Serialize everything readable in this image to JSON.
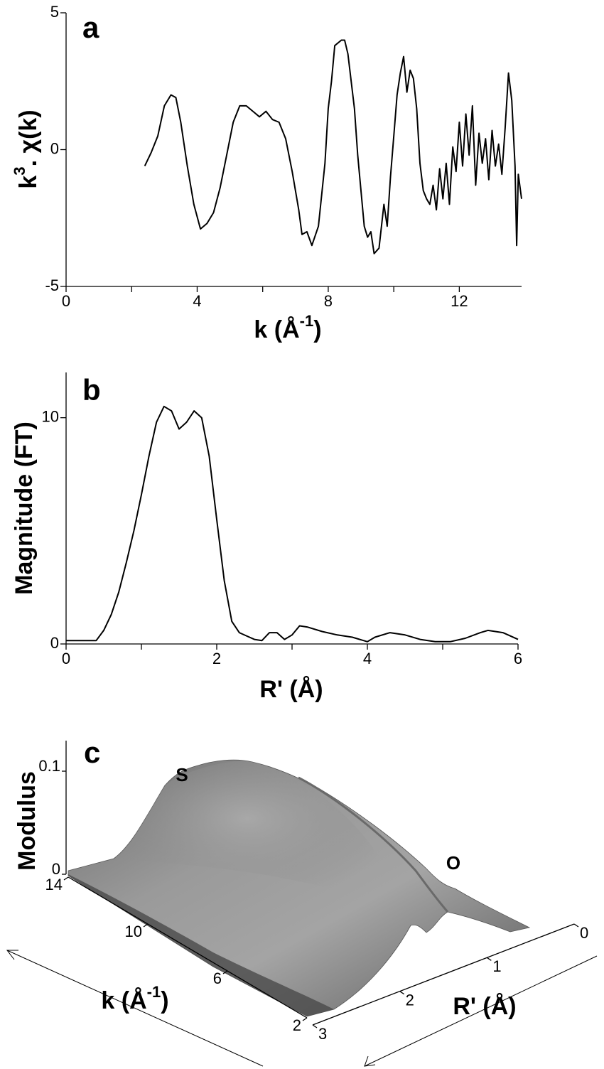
{
  "chart_data": [
    {
      "type": "line",
      "label": "a",
      "xlabel": [
        "k (Å",
        "-1",
        ")"
      ],
      "ylabel": [
        "k",
        "3",
        ". χ(k)"
      ],
      "x": [
        2.4,
        2.6,
        2.8,
        3.0,
        3.2,
        3.35,
        3.5,
        3.7,
        3.9,
        4.1,
        4.3,
        4.5,
        4.7,
        4.9,
        5.1,
        5.3,
        5.5,
        5.7,
        5.9,
        6.1,
        6.3,
        6.5,
        6.7,
        6.9,
        7.1,
        7.2,
        7.35,
        7.5,
        7.7,
        7.9,
        8.0,
        8.1,
        8.2,
        8.4,
        8.5,
        8.6,
        8.8,
        8.9,
        9.0,
        9.1,
        9.2,
        9.3,
        9.4,
        9.55,
        9.7,
        9.8,
        9.9,
        10.0,
        10.1,
        10.2,
        10.3,
        10.4,
        10.5,
        10.6,
        10.7,
        10.8,
        10.9,
        11.0,
        11.1,
        11.2,
        11.3,
        11.4,
        11.5,
        11.6,
        11.7,
        11.8,
        11.9,
        12.0,
        12.1,
        12.2,
        12.3,
        12.4,
        12.5,
        12.6,
        12.7,
        12.8,
        12.9,
        13.0,
        13.1,
        13.2,
        13.3,
        13.4,
        13.5,
        13.6,
        13.7,
        13.75,
        13.8,
        13.9
      ],
      "values": [
        -0.6,
        -0.1,
        0.5,
        1.6,
        2.0,
        1.9,
        1.0,
        -0.6,
        -2.0,
        -2.9,
        -2.7,
        -2.3,
        -1.4,
        -0.2,
        1.0,
        1.6,
        1.6,
        1.4,
        1.2,
        1.4,
        1.1,
        1.0,
        0.4,
        -0.8,
        -2.2,
        -3.1,
        -3.0,
        -3.5,
        -2.8,
        -0.5,
        1.5,
        2.5,
        3.8,
        4.0,
        4.0,
        3.5,
        1.5,
        -0.2,
        -1.5,
        -2.8,
        -3.2,
        -3.0,
        -3.8,
        -3.6,
        -2.0,
        -2.8,
        -1.0,
        0.5,
        2.0,
        2.8,
        3.4,
        2.1,
        2.9,
        2.6,
        1.5,
        -0.5,
        -1.5,
        -1.8,
        -2.0,
        -1.3,
        -2.2,
        -0.7,
        -1.8,
        -0.5,
        -2.0,
        0.1,
        -0.8,
        1.0,
        -0.6,
        1.3,
        -0.2,
        1.6,
        -1.3,
        0.6,
        -0.5,
        0.4,
        -1.1,
        0.7,
        -0.6,
        0.2,
        -0.9,
        0.8,
        2.8,
        1.8,
        -0.6,
        -3.5,
        -0.9,
        -1.8
      ],
      "color": "#000000",
      "xlim": [
        0,
        13.9
      ],
      "xticks": [
        0,
        4,
        8,
        12
      ],
      "xminorticks": [
        2,
        6,
        10
      ],
      "ylim": [
        -5,
        5
      ],
      "yticks": [
        -5,
        0,
        5
      ]
    },
    {
      "type": "line",
      "label": "b",
      "xlabel": "R' (Å)",
      "ylabel": "Magnitude (FT)",
      "x": [
        0,
        0.4,
        0.5,
        0.6,
        0.7,
        0.8,
        0.9,
        1.0,
        1.1,
        1.2,
        1.3,
        1.4,
        1.5,
        1.6,
        1.7,
        1.8,
        1.9,
        2.0,
        2.1,
        2.2,
        2.3,
        2.4,
        2.5,
        2.6,
        2.7,
        2.8,
        2.9,
        3.0,
        3.1,
        3.2,
        3.4,
        3.6,
        3.8,
        4.0,
        4.1,
        4.3,
        4.5,
        4.7,
        4.9,
        5.1,
        5.3,
        5.5,
        5.6,
        5.8,
        6.0
      ],
      "values": [
        0.15,
        0.15,
        0.6,
        1.3,
        2.3,
        3.6,
        5.0,
        6.6,
        8.3,
        9.8,
        10.5,
        10.3,
        9.5,
        9.8,
        10.3,
        10.0,
        8.3,
        5.5,
        2.8,
        1.0,
        0.5,
        0.35,
        0.2,
        0.15,
        0.5,
        0.5,
        0.2,
        0.4,
        0.8,
        0.75,
        0.55,
        0.4,
        0.3,
        0.1,
        0.3,
        0.5,
        0.4,
        0.2,
        0.1,
        0.1,
        0.25,
        0.5,
        0.6,
        0.5,
        0.2
      ],
      "color": "#000000",
      "xlim": [
        0,
        6
      ],
      "xticks": [
        0,
        2,
        4,
        6
      ],
      "xminorticks": [
        1,
        3,
        5
      ],
      "ylim": [
        0,
        12
      ],
      "yticks": [
        0,
        10
      ]
    },
    {
      "type": "surface",
      "label": "c",
      "zlabel": "Modulus",
      "xlabel": [
        "k (Å",
        "-1",
        ")"
      ],
      "ylabel": "R' (Å)",
      "zlim": [
        0,
        0.1
      ],
      "zticks": [
        0,
        0.1
      ],
      "xlim": [
        2,
        14
      ],
      "xticks": [
        14,
        10,
        6,
        2
      ],
      "ylim": [
        0,
        3
      ],
      "yticks": [
        0,
        1,
        2,
        3
      ],
      "annotations": [
        "S",
        "O"
      ],
      "color": "#8a8a8a"
    }
  ]
}
